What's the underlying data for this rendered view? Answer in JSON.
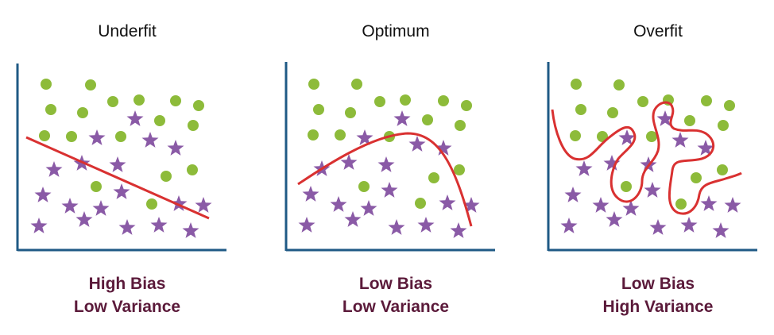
{
  "colors": {
    "axis": "#1f5a85",
    "point": "#8dbb3a",
    "star": "#8a5aa6",
    "curve": "#d93131",
    "caption": "#5b1a3a"
  },
  "panels": [
    {
      "title": "Underfit",
      "caption_line1": "High Bias",
      "caption_line2": "Low Variance"
    },
    {
      "title": "Optimum",
      "caption_line1": "Low Bias",
      "caption_line2": "Low Variance"
    },
    {
      "title": "Overfit",
      "caption_line1": "Low Bias",
      "caption_line2": "High Variance"
    }
  ],
  "legend_icons": {
    "circle": "green-circle-point-icon",
    "star": "purple-star-point-icon"
  }
}
